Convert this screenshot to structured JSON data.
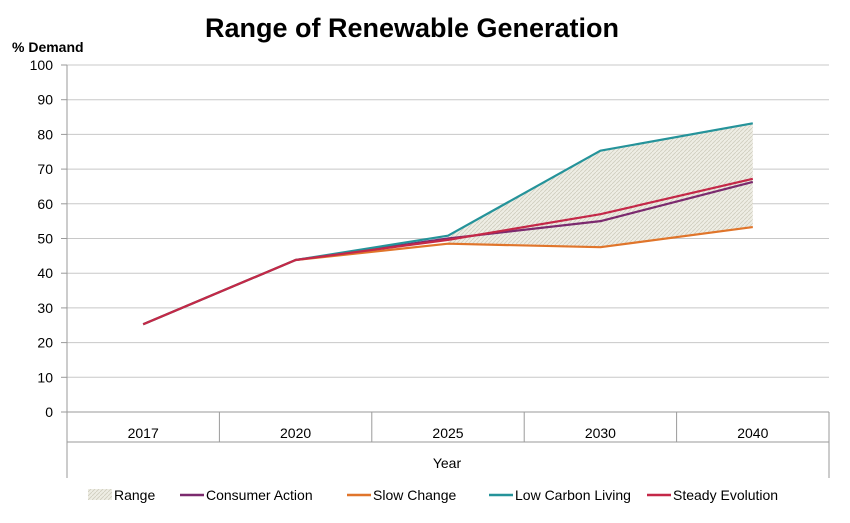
{
  "chart_data": {
    "type": "line",
    "title": "Range of Renewable Generation",
    "ylabel": "% Demand",
    "xlabel": "Year",
    "ylim": [
      0,
      100
    ],
    "yticks": [
      0,
      10,
      20,
      30,
      40,
      50,
      60,
      70,
      80,
      90,
      100
    ],
    "categories": [
      "2017",
      "2020",
      "2025",
      "2030",
      "2040"
    ],
    "grid": true,
    "legend_position": "bottom",
    "series": [
      {
        "name": "Consumer Action",
        "color": "#7B2A6E",
        "values": [
          25.3,
          43.8,
          50.0,
          55.0,
          66.3
        ]
      },
      {
        "name": "Slow Change",
        "color": "#E0752B",
        "values": [
          25.3,
          43.8,
          48.5,
          47.5,
          53.3
        ]
      },
      {
        "name": "Low Carbon Living",
        "color": "#25939A",
        "values": [
          25.3,
          43.8,
          50.8,
          75.3,
          83.2
        ]
      },
      {
        "name": "Steady Evolution",
        "color": "#C42848",
        "values": [
          25.3,
          43.8,
          49.6,
          57.0,
          67.2
        ]
      }
    ],
    "range": {
      "name": "Range",
      "color": "#EEEDE4",
      "hatch_color": "#CFCDBE",
      "start_index": 2
    }
  }
}
